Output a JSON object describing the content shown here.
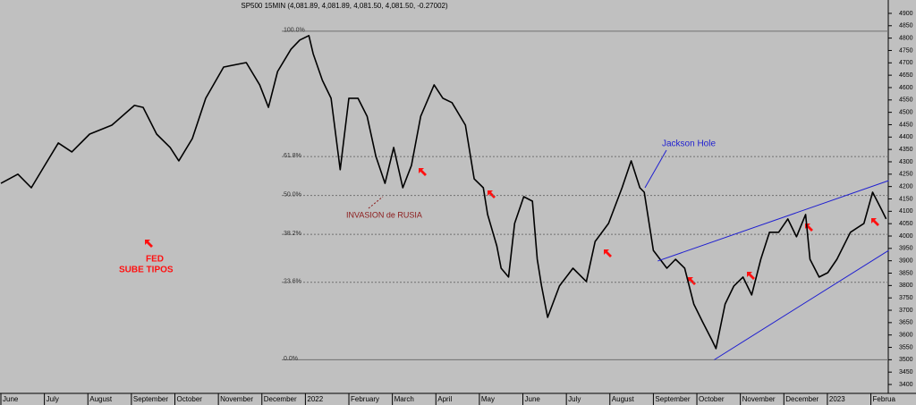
{
  "chart_data": {
    "type": "line",
    "title": "SP500 15MIN (4,081.89, 4,081.89, 4,081.50, 4,081.50, -0.27002)",
    "x": [
      0,
      0.39,
      0.7,
      1.01,
      1.32,
      1.63,
      2.04,
      2.55,
      3.07,
      3.27,
      3.58,
      3.89,
      4.09,
      4.4,
      4.71,
      5.12,
      5.64,
      5.95,
      6.15,
      6.36,
      6.67,
      6.87,
      7.08,
      7.18,
      7.39,
      7.59,
      7.8,
      8.0,
      8.21,
      8.42,
      8.62,
      8.83,
      9.03,
      9.24,
      9.44,
      9.65,
      9.96,
      10.16,
      10.37,
      10.68,
      10.88,
      11.09,
      11.19,
      11.4,
      11.5,
      11.67,
      11.81,
      12.02,
      12.22,
      12.33,
      12.43,
      12.57,
      12.84,
      13.15,
      13.46,
      13.66,
      13.97,
      14.28,
      14.49,
      14.69,
      14.79,
      15.0,
      15.31,
      15.51,
      15.72,
      15.93,
      16.13,
      16.34,
      16.44,
      16.65,
      16.85,
      17.06,
      17.26,
      17.47,
      17.67,
      17.88,
      18.09,
      18.29,
      18.5,
      18.6,
      18.81,
      19.01,
      19.22,
      19.53,
      19.84,
      20.04,
      20.25,
      20.35
    ],
    "series": [
      {
        "color": "#000000",
        "values": [
          4213,
          4250,
          4195,
          4286,
          4376,
          4340,
          4412,
          4448,
          4528,
          4520,
          4412,
          4358,
          4304,
          4394,
          4557,
          4683,
          4701,
          4611,
          4520,
          4665,
          4755,
          4792,
          4810,
          4737,
          4629,
          4557,
          4268,
          4557,
          4557,
          4484,
          4322,
          4213,
          4358,
          4195,
          4286,
          4484,
          4611,
          4557,
          4539,
          4448,
          4231,
          4195,
          4087,
          3960,
          3870,
          3834,
          4051,
          4159,
          4141,
          3906,
          3798,
          3671,
          3798,
          3870,
          3816,
          3978,
          4051,
          4195,
          4304,
          4195,
          4177,
          3942,
          3870,
          3906,
          3870,
          3725,
          3653,
          3581,
          3545,
          3725,
          3798,
          3834,
          3762,
          3906,
          4015,
          4015,
          4069,
          3997,
          4087,
          3906,
          3834,
          3852,
          3906,
          4015,
          4051,
          4177,
          4105,
          4069
        ]
      }
    ],
    "xlim": [
      0,
      20.4
    ],
    "xticks": [
      {
        "value": 0,
        "label": "June"
      },
      {
        "value": 1,
        "label": "July"
      },
      {
        "value": 2,
        "label": "August"
      },
      {
        "value": 3,
        "label": "September"
      },
      {
        "value": 4,
        "label": "October"
      },
      {
        "value": 5,
        "label": "November"
      },
      {
        "value": 6,
        "label": "December"
      },
      {
        "value": 7,
        "label": "2022"
      },
      {
        "value": 8,
        "label": "February"
      },
      {
        "value": 9,
        "label": "March"
      },
      {
        "value": 10,
        "label": "April"
      },
      {
        "value": 11,
        "label": "May"
      },
      {
        "value": 12,
        "label": "June"
      },
      {
        "value": 13,
        "label": "July"
      },
      {
        "value": 14,
        "label": "August"
      },
      {
        "value": 15,
        "label": "September"
      },
      {
        "value": 16,
        "label": "October"
      },
      {
        "value": 17,
        "label": "November"
      },
      {
        "value": 18,
        "label": "December"
      },
      {
        "value": 19,
        "label": "2023"
      },
      {
        "value": 20,
        "label": "Februa"
      }
    ],
    "ylim": [
      3364,
      4954
    ],
    "yticks": [
      3400,
      3450,
      3500,
      3550,
      3600,
      3650,
      3700,
      3750,
      3800,
      3850,
      3900,
      3950,
      4000,
      4050,
      4100,
      4150,
      4200,
      4250,
      4300,
      4350,
      4400,
      4450,
      4500,
      4550,
      4600,
      4650,
      4700,
      4750,
      4800,
      4850,
      4900
    ],
    "fib_levels": [
      {
        "value": 4828,
        "label": "100.0%"
      },
      {
        "value": 4321,
        "label": "61.8%"
      },
      {
        "value": 4164,
        "label": "50.0%"
      },
      {
        "value": 4007,
        "label": "38.2%"
      },
      {
        "value": 3813,
        "label": "23.6%"
      },
      {
        "value": 3500,
        "label": "0.0%"
      }
    ],
    "trendlines": [
      {
        "color": "#1f1fd0",
        "x": [
          15.1,
          20.41
        ],
        "y": [
          3899,
          4224
        ]
      },
      {
        "color": "#1f1fd0",
        "x": [
          16.4,
          20.41
        ],
        "y": [
          3500,
          3942
        ]
      }
    ],
    "annotations": [
      "Jackson Hole",
      "INVASION de RUSIA",
      "FED",
      "SUBE TIPOS"
    ]
  }
}
